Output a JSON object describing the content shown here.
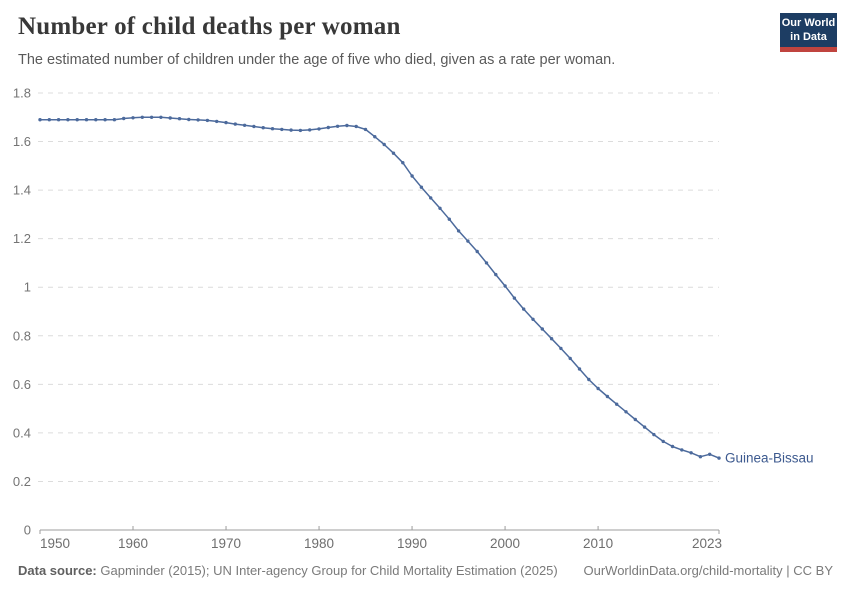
{
  "header": {
    "title": "Number of child deaths per woman",
    "subtitle": "The estimated number of children under the age of five who died, given as a rate per woman.",
    "logo": {
      "line1": "Our World",
      "line2": "in Data",
      "bg_color": "#1d3d63",
      "accent_color": "#c0443f"
    }
  },
  "chart_data": {
    "type": "line",
    "title": "Number of child deaths per woman",
    "xlabel": "",
    "ylabel": "",
    "xlim": [
      1950,
      2023
    ],
    "ylim": [
      0,
      1.8
    ],
    "grid": "horizontal-dashed",
    "grid_color": "#dcdcdc",
    "axis_color": "#9c9c9c",
    "tick_label_color": "#6e6e6e",
    "legend_position": "end-of-line-label",
    "x_ticks": [
      {
        "v": 1950,
        "label": "1950"
      },
      {
        "v": 1960,
        "label": "1960"
      },
      {
        "v": 1970,
        "label": "1970"
      },
      {
        "v": 1980,
        "label": "1980"
      },
      {
        "v": 1990,
        "label": "1990"
      },
      {
        "v": 2000,
        "label": "2000"
      },
      {
        "v": 2010,
        "label": "2010"
      },
      {
        "v": 2023,
        "label": "2023"
      }
    ],
    "y_ticks": [
      {
        "v": 0,
        "label": "0"
      },
      {
        "v": 0.2,
        "label": "0.2"
      },
      {
        "v": 0.4,
        "label": "0.4"
      },
      {
        "v": 0.6,
        "label": "0.6"
      },
      {
        "v": 0.8,
        "label": "0.8"
      },
      {
        "v": 1,
        "label": "1"
      },
      {
        "v": 1.2,
        "label": "1.2"
      },
      {
        "v": 1.4,
        "label": "1.4"
      },
      {
        "v": 1.6,
        "label": "1.6"
      },
      {
        "v": 1.8,
        "label": "1.8"
      }
    ],
    "series": [
      {
        "name": "Guinea-Bissau",
        "color": "#4c6a9c",
        "label_color": "#3d5a8f",
        "points": [
          [
            1950,
            1.69
          ],
          [
            1951,
            1.69
          ],
          [
            1952,
            1.69
          ],
          [
            1953,
            1.69
          ],
          [
            1954,
            1.69
          ],
          [
            1955,
            1.69
          ],
          [
            1956,
            1.69
          ],
          [
            1957,
            1.69
          ],
          [
            1958,
            1.69
          ],
          [
            1959,
            1.695
          ],
          [
            1960,
            1.698
          ],
          [
            1961,
            1.7
          ],
          [
            1962,
            1.7
          ],
          [
            1963,
            1.7
          ],
          [
            1964,
            1.697
          ],
          [
            1965,
            1.694
          ],
          [
            1966,
            1.691
          ],
          [
            1967,
            1.689
          ],
          [
            1968,
            1.687
          ],
          [
            1969,
            1.683
          ],
          [
            1970,
            1.678
          ],
          [
            1971,
            1.672
          ],
          [
            1972,
            1.667
          ],
          [
            1973,
            1.662
          ],
          [
            1974,
            1.657
          ],
          [
            1975,
            1.653
          ],
          [
            1976,
            1.65
          ],
          [
            1977,
            1.647
          ],
          [
            1978,
            1.646
          ],
          [
            1979,
            1.648
          ],
          [
            1980,
            1.652
          ],
          [
            1981,
            1.658
          ],
          [
            1982,
            1.663
          ],
          [
            1983,
            1.666
          ],
          [
            1984,
            1.662
          ],
          [
            1985,
            1.65
          ],
          [
            1986,
            1.62
          ],
          [
            1987,
            1.588
          ],
          [
            1988,
            1.552
          ],
          [
            1989,
            1.513
          ],
          [
            1990,
            1.458
          ],
          [
            1991,
            1.412
          ],
          [
            1992,
            1.368
          ],
          [
            1993,
            1.325
          ],
          [
            1994,
            1.28
          ],
          [
            1995,
            1.232
          ],
          [
            1996,
            1.19
          ],
          [
            1997,
            1.147
          ],
          [
            1998,
            1.1
          ],
          [
            1999,
            1.052
          ],
          [
            2000,
            1.005
          ],
          [
            2001,
            0.955
          ],
          [
            2002,
            0.91
          ],
          [
            2003,
            0.868
          ],
          [
            2004,
            0.828
          ],
          [
            2005,
            0.788
          ],
          [
            2006,
            0.748
          ],
          [
            2007,
            0.707
          ],
          [
            2008,
            0.663
          ],
          [
            2009,
            0.62
          ],
          [
            2010,
            0.583
          ],
          [
            2011,
            0.55
          ],
          [
            2012,
            0.518
          ],
          [
            2013,
            0.487
          ],
          [
            2014,
            0.455
          ],
          [
            2015,
            0.424
          ],
          [
            2016,
            0.393
          ],
          [
            2017,
            0.365
          ],
          [
            2018,
            0.344
          ],
          [
            2019,
            0.33
          ],
          [
            2020,
            0.318
          ],
          [
            2021,
            0.302
          ],
          [
            2022,
            0.312
          ],
          [
            2023,
            0.296
          ]
        ]
      }
    ]
  },
  "footer": {
    "source_label": "Data source:",
    "source_text": "Gapminder (2015); UN Inter-agency Group for Child Mortality Estimation (2025)",
    "credit": "OurWorldinData.org/child-mortality | CC BY"
  }
}
